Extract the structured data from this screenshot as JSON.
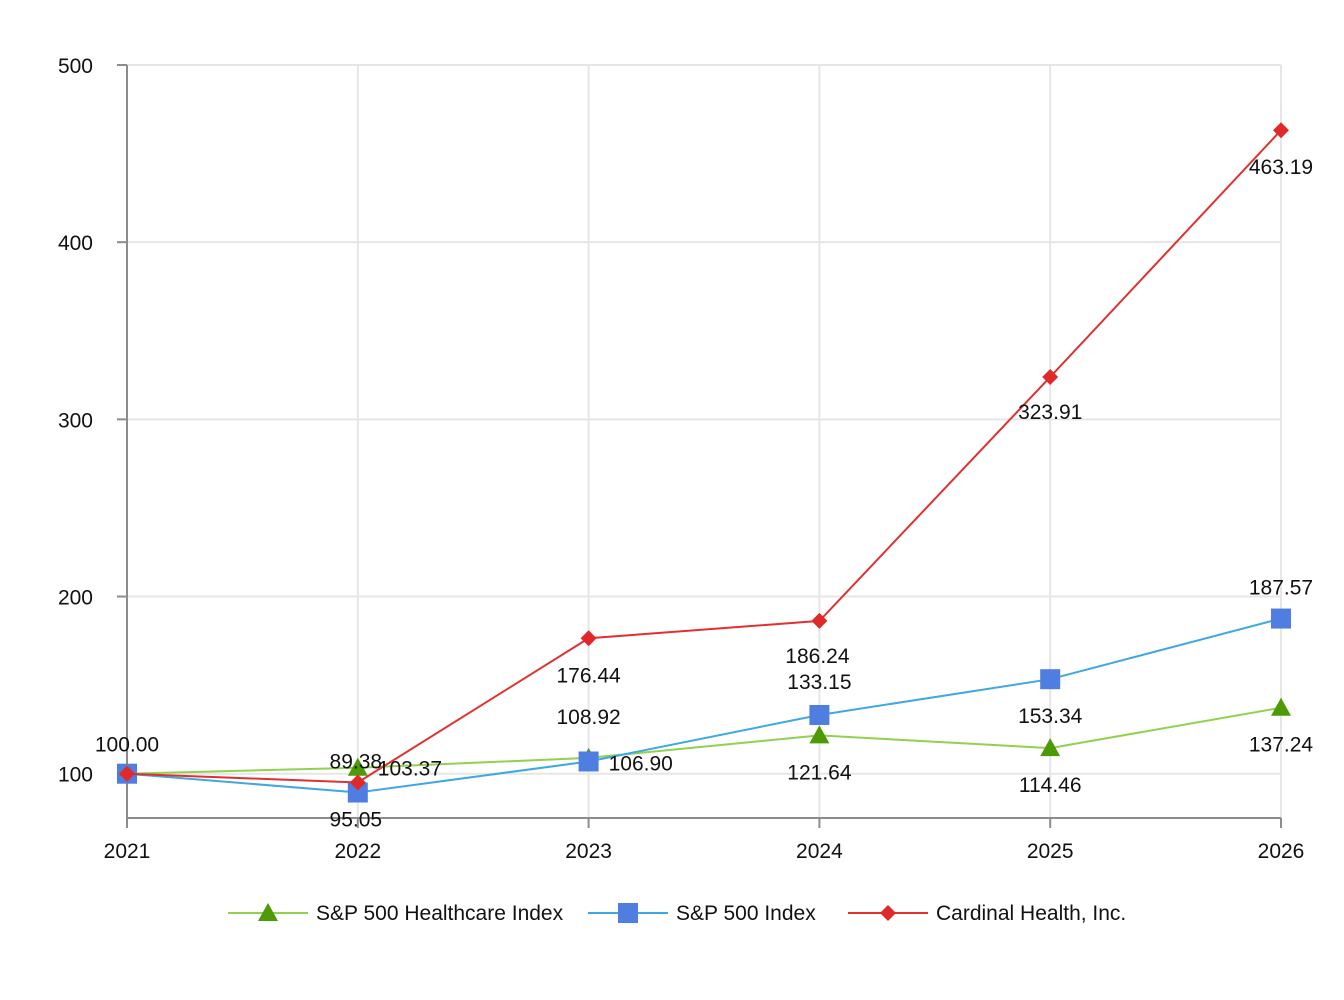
{
  "chart_data": {
    "type": "line",
    "title": "",
    "xlabel": "",
    "ylabel": "",
    "x": [
      "2021",
      "2022",
      "2023",
      "2024",
      "2025",
      "2026"
    ],
    "ylim": [
      75,
      500
    ],
    "yticks": [
      100,
      200,
      300,
      400,
      500
    ],
    "grid": true,
    "legend_position": "bottom",
    "series": [
      {
        "name": "S&P 500 Healthcare Index",
        "color": "#92d050",
        "marker": "triangle",
        "marker_color": "#4e9a06",
        "values": [
          100.0,
          103.37,
          108.92,
          121.64,
          114.46,
          137.24
        ],
        "labels": [
          "",
          "103.37",
          "108.92",
          "121.64",
          "114.46",
          "137.24"
        ]
      },
      {
        "name": "S&P 500 Index",
        "color": "#40a8e0",
        "marker": "square",
        "marker_color": "#4f7ee0",
        "values": [
          100.0,
          89.38,
          106.9,
          133.15,
          153.34,
          187.57
        ],
        "labels": [
          "",
          "89.38",
          "106.90",
          "133.15",
          "153.34",
          "187.57"
        ]
      },
      {
        "name": "Cardinal Health, Inc.",
        "color": "#e03030",
        "marker": "diamond",
        "marker_color": "#e02a2a",
        "values": [
          100.0,
          95.05,
          176.44,
          186.24,
          323.91,
          463.19
        ],
        "labels": [
          "100.00",
          "95.05",
          "176.44",
          "186.24",
          "323.91",
          "463.19"
        ]
      }
    ]
  }
}
